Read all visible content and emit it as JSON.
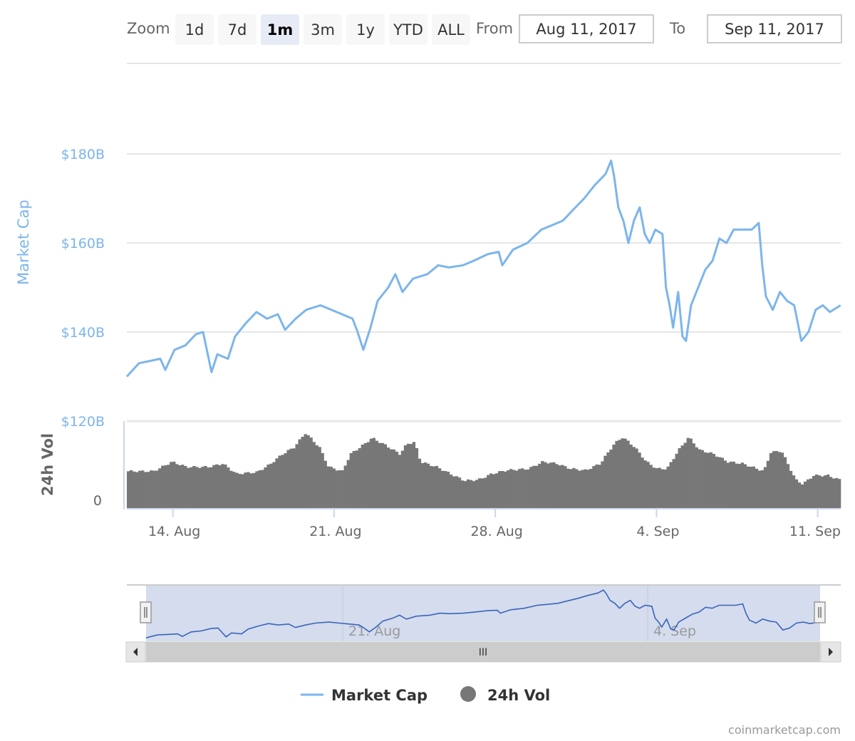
{
  "range_selector": {
    "zoom_label": "Zoom",
    "buttons": [
      {
        "label": "1d",
        "active": false
      },
      {
        "label": "7d",
        "active": false
      },
      {
        "label": "1m",
        "active": true
      },
      {
        "label": "3m",
        "active": false
      },
      {
        "label": "1y",
        "active": false
      },
      {
        "label": "YTD",
        "active": false
      },
      {
        "label": "ALL",
        "active": false
      }
    ],
    "from_label": "From",
    "from_value": "Aug 11, 2017",
    "to_label": "To",
    "to_value": "Sep 11, 2017"
  },
  "colors": {
    "market_cap": "#7cb5ec",
    "volume": "#777777",
    "navigator_line": "#3b64b8",
    "navigator_mask": "#ccd6eb"
  },
  "chart_data": {
    "type": "line",
    "x_unit": "days since 12 Aug 2017 00:00",
    "y_axis": {
      "title": "Market Cap",
      "ticks": [
        "$120B",
        "$140B",
        "$160B",
        "$180B"
      ],
      "tick_values": [
        120,
        140,
        160,
        180
      ],
      "range": [
        120,
        200
      ],
      "unit": "USD billions"
    },
    "volume_axis": {
      "title": "24h Vol",
      "ticks": [
        "0"
      ],
      "unit": "relative (0-100)"
    },
    "x_ticks": [
      {
        "label": "14. Aug",
        "day": 2
      },
      {
        "label": "21. Aug",
        "day": 9
      },
      {
        "label": "28. Aug",
        "day": 16
      },
      {
        "label": "4. Sep",
        "day": 23
      },
      {
        "label": "11. Sep",
        "day": 30
      }
    ],
    "x_range": [
      0,
      31
    ],
    "market_cap": [
      [
        0,
        130
      ],
      [
        0.53,
        133
      ],
      [
        1.0,
        133.5
      ],
      [
        1.45,
        134
      ],
      [
        1.67,
        131.5
      ],
      [
        2.07,
        136
      ],
      [
        2.54,
        137
      ],
      [
        3.0,
        139.5
      ],
      [
        3.31,
        140
      ],
      [
        3.68,
        131
      ],
      [
        3.93,
        135
      ],
      [
        4.39,
        134
      ],
      [
        4.7,
        139
      ],
      [
        5.17,
        142
      ],
      [
        5.63,
        144.5
      ],
      [
        6.09,
        143
      ],
      [
        6.56,
        144
      ],
      [
        6.87,
        140.5
      ],
      [
        7.33,
        143
      ],
      [
        7.79,
        145
      ],
      [
        8.41,
        146
      ],
      [
        8.88,
        145
      ],
      [
        9.34,
        144
      ],
      [
        9.8,
        143
      ],
      [
        10.02,
        140
      ],
      [
        10.27,
        136
      ],
      [
        10.58,
        141
      ],
      [
        10.89,
        147
      ],
      [
        11.35,
        150
      ],
      [
        11.66,
        153
      ],
      [
        11.97,
        149
      ],
      [
        12.43,
        152
      ],
      [
        13.05,
        153
      ],
      [
        13.52,
        155
      ],
      [
        13.98,
        154.5
      ],
      [
        14.6,
        155
      ],
      [
        15.06,
        156
      ],
      [
        15.68,
        157.5
      ],
      [
        16.15,
        158
      ],
      [
        16.3,
        155
      ],
      [
        16.77,
        158.5
      ],
      [
        17.39,
        160
      ],
      [
        18.0,
        163
      ],
      [
        18.47,
        164
      ],
      [
        18.93,
        165
      ],
      [
        19.39,
        167.5
      ],
      [
        19.86,
        170
      ],
      [
        20.32,
        173
      ],
      [
        20.79,
        175.5
      ],
      [
        21.03,
        178.5
      ],
      [
        21.16,
        175
      ],
      [
        21.34,
        168
      ],
      [
        21.56,
        165
      ],
      [
        21.78,
        160
      ],
      [
        22.02,
        165
      ],
      [
        22.27,
        168
      ],
      [
        22.49,
        162
      ],
      [
        22.7,
        160
      ],
      [
        22.95,
        163
      ],
      [
        23.26,
        162
      ],
      [
        23.41,
        150
      ],
      [
        23.57,
        146
      ],
      [
        23.72,
        141
      ],
      [
        23.94,
        149
      ],
      [
        24.13,
        139
      ],
      [
        24.28,
        138
      ],
      [
        24.5,
        146
      ],
      [
        24.81,
        150
      ],
      [
        25.12,
        154
      ],
      [
        25.43,
        156
      ],
      [
        25.73,
        161
      ],
      [
        26.04,
        160
      ],
      [
        26.35,
        163
      ],
      [
        26.66,
        163
      ],
      [
        27.13,
        163
      ],
      [
        27.44,
        164.5
      ],
      [
        27.59,
        155
      ],
      [
        27.75,
        148
      ],
      [
        28.05,
        145
      ],
      [
        28.36,
        149
      ],
      [
        28.67,
        147
      ],
      [
        28.98,
        146
      ],
      [
        29.29,
        138
      ],
      [
        29.6,
        140
      ],
      [
        29.91,
        145
      ],
      [
        30.22,
        146
      ],
      [
        30.53,
        144.5
      ],
      [
        30.99,
        146
      ]
    ],
    "volume": [
      [
        0,
        43
      ],
      [
        1.1,
        43
      ],
      [
        1.9,
        54
      ],
      [
        2.54,
        48
      ],
      [
        3.5,
        48
      ],
      [
        4.1,
        52
      ],
      [
        4.7,
        40
      ],
      [
        5.6,
        42
      ],
      [
        6.1,
        50
      ],
      [
        6.7,
        63
      ],
      [
        7.2,
        71
      ],
      [
        7.7,
        88
      ],
      [
        8.3,
        71
      ],
      [
        8.7,
        48
      ],
      [
        9.3,
        43
      ],
      [
        9.65,
        63
      ],
      [
        10.27,
        75
      ],
      [
        10.58,
        82
      ],
      [
        11.2,
        73
      ],
      [
        11.8,
        63
      ],
      [
        12.1,
        75
      ],
      [
        12.43,
        77
      ],
      [
        12.7,
        54
      ],
      [
        13.4,
        48
      ],
      [
        13.98,
        40
      ],
      [
        14.6,
        32
      ],
      [
        15.2,
        33
      ],
      [
        15.8,
        40
      ],
      [
        16.4,
        44
      ],
      [
        17.4,
        46
      ],
      [
        18.0,
        54
      ],
      [
        18.6,
        52
      ],
      [
        19.2,
        46
      ],
      [
        19.86,
        44
      ],
      [
        20.5,
        52
      ],
      [
        21.1,
        75
      ],
      [
        21.47,
        83
      ],
      [
        22.0,
        71
      ],
      [
        22.5,
        54
      ],
      [
        22.95,
        46
      ],
      [
        23.4,
        46
      ],
      [
        23.88,
        67
      ],
      [
        24.34,
        83
      ],
      [
        24.8,
        68
      ],
      [
        25.43,
        63
      ],
      [
        26.04,
        54
      ],
      [
        26.66,
        52
      ],
      [
        27.29,
        46
      ],
      [
        27.6,
        43
      ],
      [
        27.9,
        65
      ],
      [
        28.36,
        67
      ],
      [
        28.67,
        50
      ],
      [
        28.98,
        33
      ],
      [
        29.29,
        28
      ],
      [
        29.76,
        38
      ],
      [
        30.38,
        38
      ],
      [
        30.99,
        32
      ]
    ],
    "legend": [
      {
        "name": "Market Cap",
        "symbol": "line"
      },
      {
        "name": "24h Vol",
        "symbol": "circle"
      }
    ],
    "navigator": {
      "x_ticks": [
        "21. Aug",
        "4. Sep"
      ],
      "scrollbar_grip": "III"
    }
  },
  "credit": "coinmarketcap.com"
}
